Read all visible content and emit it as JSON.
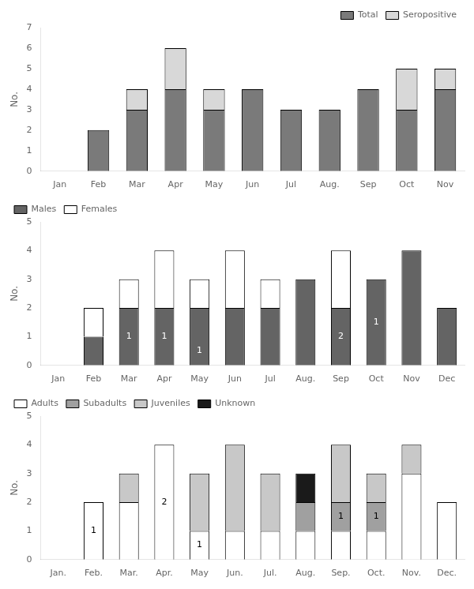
{
  "chart_data": [
    {
      "type": "bar",
      "stacked": true,
      "grid": false,
      "legend": "upper right",
      "categories": [
        "Jan",
        "Feb",
        "Mar",
        "Apr",
        "May",
        "Jun",
        "Jul",
        "Aug.",
        "Sep",
        "Oct",
        "Nov"
      ],
      "series": [
        {
          "name": "Total",
          "color": "#7a7a7a",
          "values": [
            0,
            2,
            3,
            4,
            3,
            4,
            3,
            3,
            4,
            3,
            4
          ]
        },
        {
          "name": "Seropositive",
          "color": "#d8d8d8",
          "values": [
            0,
            0,
            1,
            2,
            1,
            0,
            0,
            0,
            0,
            2,
            1
          ]
        }
      ],
      "ylabel": "No.",
      "ylim": [
        0,
        7
      ],
      "yticks": [
        0,
        1,
        2,
        3,
        4,
        5,
        6,
        7
      ]
    },
    {
      "type": "bar",
      "stacked": true,
      "grid": false,
      "legend": "upper left",
      "categories": [
        "Jan",
        "Feb",
        "Mar",
        "Apr",
        "May",
        "Jun",
        "Jul",
        "Aug.",
        "Sep",
        "Oct",
        "Nov",
        "Dec"
      ],
      "series": [
        {
          "name": "Males",
          "color": "#646464",
          "values": [
            0,
            1,
            2,
            2,
            2,
            2,
            2,
            3,
            2,
            3,
            4,
            2
          ]
        },
        {
          "name": "Females",
          "color": "#ffffff",
          "values": [
            0,
            1,
            1,
            2,
            1,
            2,
            1,
            0,
            2,
            0,
            0,
            0
          ]
        }
      ],
      "annotations": [
        {
          "x": "Mar",
          "y": 1.0,
          "text": "1",
          "color": "white"
        },
        {
          "x": "Apr",
          "y": 1.0,
          "text": "1",
          "color": "white"
        },
        {
          "x": "May",
          "y": 0.5,
          "text": "1",
          "color": "white"
        },
        {
          "x": "Sep",
          "y": 1.0,
          "text": "2",
          "color": "white"
        },
        {
          "x": "Oct",
          "y": 1.5,
          "text": "1",
          "color": "white"
        }
      ],
      "ylabel": "No.",
      "ylim": [
        0,
        5
      ],
      "yticks": [
        0,
        1,
        2,
        3,
        4,
        5
      ]
    },
    {
      "type": "bar",
      "stacked": true,
      "grid": false,
      "legend": "upper left",
      "categories": [
        "Jan.",
        "Feb.",
        "Mar.",
        "Apr.",
        "May",
        "Jun.",
        "Jul.",
        "Aug.",
        "Sep.",
        "Oct.",
        "Nov.",
        "Dec."
      ],
      "series": [
        {
          "name": "Adults",
          "color": "#ffffff",
          "values": [
            0,
            2,
            2,
            4,
            1,
            1,
            1,
            1,
            1,
            1,
            3,
            2
          ]
        },
        {
          "name": "Subadults",
          "color": "#a0a0a0",
          "values": [
            0,
            0,
            0,
            0,
            0,
            0,
            0,
            1,
            1,
            1,
            0,
            0
          ]
        },
        {
          "name": "Juveniles",
          "color": "#c8c8c8",
          "values": [
            0,
            0,
            1,
            0,
            2,
            3,
            2,
            0,
            2,
            1,
            1,
            0
          ]
        },
        {
          "name": "Unknown",
          "color": "#1a1a1a",
          "values": [
            0,
            0,
            0,
            0,
            0,
            0,
            0,
            1,
            0,
            0,
            0,
            0
          ]
        }
      ],
      "annotations": [
        {
          "x": "Feb.",
          "y": 1.0,
          "text": "1",
          "color": "black"
        },
        {
          "x": "Apr.",
          "y": 2.0,
          "text": "2",
          "color": "black"
        },
        {
          "x": "May",
          "y": 0.5,
          "text": "1",
          "color": "black"
        },
        {
          "x": "Sep.",
          "y": 1.5,
          "text": "1",
          "color": "black"
        },
        {
          "x": "Oct.",
          "y": 1.5,
          "text": "1",
          "color": "black"
        }
      ],
      "ylabel": "No.",
      "ylim": [
        0,
        5
      ],
      "yticks": [
        0,
        1,
        2,
        3,
        4,
        5
      ]
    }
  ]
}
